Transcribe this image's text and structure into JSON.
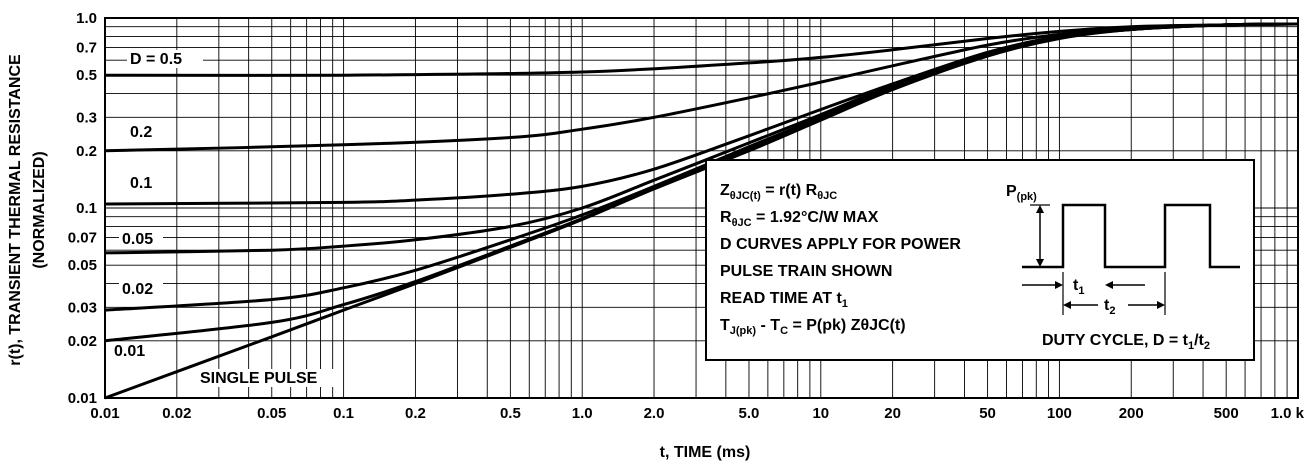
{
  "chart_data": {
    "type": "line",
    "title": "",
    "xlabel": "t, TIME (ms)",
    "ylabel": "r(t), TRANSIENT THERMAL RESISTANCE",
    "ylabel2": "(NORMALIZED)",
    "x_scale": "log",
    "y_scale": "log",
    "xlim": [
      0.01,
      1000
    ],
    "ylim": [
      0.01,
      1.0
    ],
    "grid": true,
    "x_ticks": [
      0.01,
      0.02,
      0.05,
      0.1,
      0.2,
      0.5,
      1.0,
      2.0,
      5.0,
      10,
      20,
      50,
      100,
      200,
      500,
      1000
    ],
    "x_tick_labels": [
      "0.01",
      "0.02",
      "0.05",
      "0.1",
      "0.2",
      "0.5",
      "1.0",
      "2.0",
      "5.0",
      "10",
      "20",
      "50",
      "100",
      "200",
      "500",
      "1.0 k"
    ],
    "y_ticks": [
      0.01,
      0.02,
      0.03,
      0.05,
      0.07,
      0.1,
      0.2,
      0.3,
      0.5,
      0.7,
      1.0
    ],
    "y_tick_labels": [
      "0.01",
      "0.02",
      "0.03",
      "0.05",
      "0.07",
      "0.1",
      "0.2",
      "0.3",
      "0.5",
      "0.7",
      "1.0"
    ],
    "series": [
      {
        "name": "D = 0.5",
        "x": [
          0.01,
          0.1,
          1,
          5,
          10,
          20,
          50,
          100,
          200,
          500,
          1000
        ],
        "y": [
          0.5,
          0.5,
          0.52,
          0.58,
          0.62,
          0.68,
          0.78,
          0.85,
          0.9,
          0.92,
          0.93
        ]
      },
      {
        "name": "0.2",
        "x": [
          0.01,
          0.1,
          0.5,
          1,
          2,
          5,
          10,
          20,
          50,
          100,
          200,
          500,
          1000
        ],
        "y": [
          0.2,
          0.215,
          0.235,
          0.26,
          0.3,
          0.38,
          0.46,
          0.56,
          0.72,
          0.82,
          0.88,
          0.92,
          0.93
        ]
      },
      {
        "name": "0.1",
        "x": [
          0.01,
          0.1,
          0.2,
          0.5,
          1,
          2,
          5,
          10,
          20,
          50,
          100,
          200,
          500,
          1000
        ],
        "y": [
          0.105,
          0.107,
          0.11,
          0.118,
          0.13,
          0.16,
          0.24,
          0.33,
          0.45,
          0.66,
          0.8,
          0.88,
          0.92,
          0.93
        ]
      },
      {
        "name": "0.05",
        "x": [
          0.01,
          0.05,
          0.1,
          0.2,
          0.5,
          1,
          2,
          5,
          10,
          20,
          50,
          100,
          200,
          500,
          1000
        ],
        "y": [
          0.058,
          0.06,
          0.063,
          0.068,
          0.08,
          0.1,
          0.14,
          0.22,
          0.31,
          0.44,
          0.65,
          0.8,
          0.88,
          0.92,
          0.93
        ]
      },
      {
        "name": "0.02",
        "x": [
          0.01,
          0.05,
          0.1,
          0.2,
          0.5,
          1,
          2,
          5,
          10,
          20,
          50,
          100,
          200,
          500,
          1000
        ],
        "y": [
          0.029,
          0.033,
          0.038,
          0.047,
          0.068,
          0.092,
          0.13,
          0.21,
          0.3,
          0.43,
          0.64,
          0.79,
          0.87,
          0.92,
          0.93
        ]
      },
      {
        "name": "0.01",
        "x": [
          0.01,
          0.05,
          0.1,
          0.2,
          0.5,
          1,
          2,
          5,
          10,
          20,
          50,
          100,
          200,
          500,
          1000
        ],
        "y": [
          0.02,
          0.025,
          0.031,
          0.041,
          0.063,
          0.088,
          0.128,
          0.205,
          0.295,
          0.43,
          0.64,
          0.79,
          0.87,
          0.92,
          0.93
        ]
      },
      {
        "name": "SINGLE PULSE",
        "x": [
          0.01,
          0.05,
          0.1,
          0.2,
          0.5,
          1,
          2,
          5,
          10,
          20,
          50,
          100,
          200,
          500,
          1000
        ],
        "y": [
          0.01,
          0.021,
          0.029,
          0.04,
          0.062,
          0.087,
          0.126,
          0.2,
          0.29,
          0.42,
          0.63,
          0.78,
          0.87,
          0.92,
          0.93
        ]
      }
    ],
    "annotations": {
      "box_lines": [
        {
          "main": "Z",
          "sub": "θJC(t)",
          "rest": " = r(t) R",
          "sub2": "θJC",
          "rest2": ""
        },
        {
          "main": "R",
          "sub": "θJC",
          "rest": " = 1.92°C/W MAX",
          "sub2": "",
          "rest2": ""
        },
        {
          "main": "D CURVES APPLY FOR POWER",
          "sub": "",
          "rest": "",
          "sub2": "",
          "rest2": ""
        },
        {
          "main": "PULSE TRAIN SHOWN",
          "sub": "",
          "rest": "",
          "sub2": "",
          "rest2": ""
        },
        {
          "main": "READ TIME AT t",
          "sub": "1",
          "rest": "",
          "sub2": "",
          "rest2": ""
        },
        {
          "main": "T",
          "sub": "J(pk)",
          "rest": " - T",
          "sub2": "C",
          "rest2": " = P(pk) ZθJC(t)"
        }
      ],
      "ppk_label": "P",
      "ppk_sub": "(pk)",
      "t1_label": "t",
      "t1_sub": "1",
      "t2_label": "t",
      "t2_sub": "2",
      "duty_cycle": "DUTY CYCLE, D = t",
      "duty_sub1": "1",
      "duty_mid": "/t",
      "duty_sub2": "2"
    }
  }
}
